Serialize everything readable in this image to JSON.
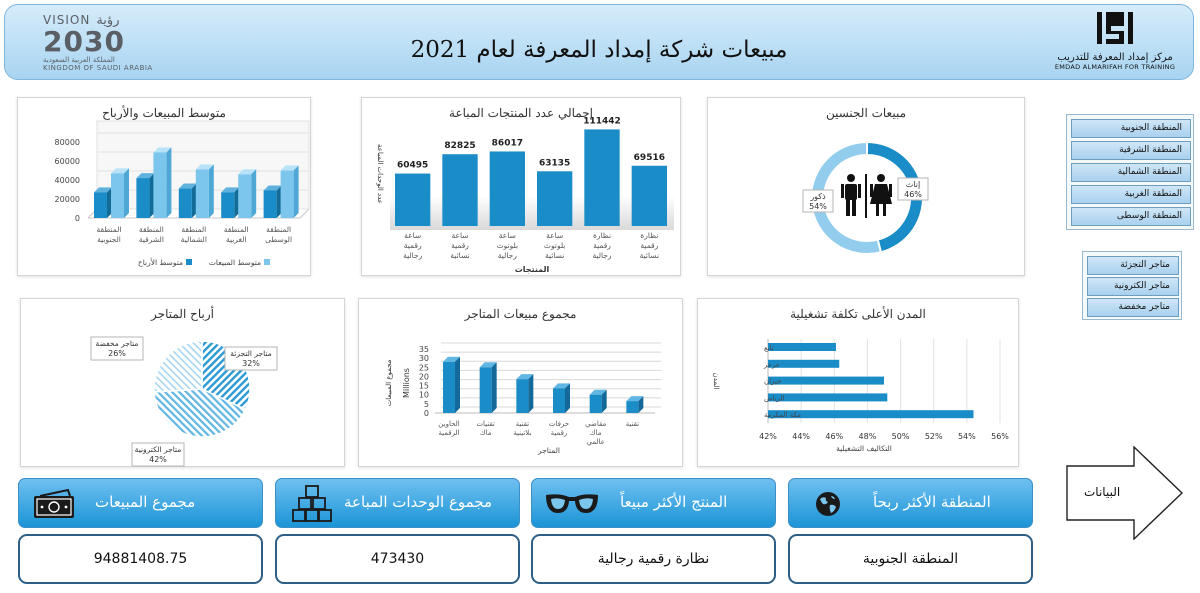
{
  "header": {
    "title": "مبيعات شركة إمداد المعرفة لعام 2021",
    "vision_top": "VISION",
    "vision_top_ar": "رؤية",
    "vision_year": "2030",
    "vision_kingdom_ar": "المملكة العربية السعودية",
    "vision_kingdom_en": "KINGDOM OF SAUDI ARABIA",
    "brand_ar": "مركز إمداد المعرفة للتدريب",
    "brand_en": "EMDAD ALMARIFAH FOR TRAINING"
  },
  "panels": {
    "avg_sales_profit": "متوسط المبيعات والأرباح",
    "total_units": "إجمالي عدد المنتجات المباعة",
    "gender_sales": "مبيعات الجنسين",
    "store_profit": "أرباح المتاجر",
    "store_sales": "مجموع مبيعات المتاجر",
    "city_costs": "المدن الأعلى تكلفة تشغيلية"
  },
  "slicers": {
    "regions": [
      "المنطقة الجنوبية",
      "المنطقة الشرقية",
      "المنطقة الشمالية",
      "المنطقة الغربية",
      "المنطقة الوسطى"
    ],
    "stores": [
      "متاجر التجزئة",
      "متاجر الكترونية",
      "متاجر مخفضة"
    ]
  },
  "nav": {
    "data_button": "البيانات"
  },
  "kpis": [
    {
      "label": "مجموع المبيعات",
      "value": "94881408.75",
      "icon": "money-icon"
    },
    {
      "label": "مجموع الوحدات المباعة",
      "value": "473430",
      "icon": "boxes-icon"
    },
    {
      "label": "المنتج الأكثر مبيعاً",
      "value": "نظارة رقمية رجالية",
      "icon": "glasses-icon"
    },
    {
      "label": "المنطقة الأكثر ربحاً",
      "value": "المنطقة الجنوبية",
      "icon": "globe-icon"
    }
  ],
  "colors": {
    "accent": "#1b94d6",
    "series_dark": "#1a8cc7",
    "series_light": "#7cc6ee",
    "header_bg": "#b6dcf4"
  },
  "chart_data": [
    {
      "id": "avg_sales_profit",
      "type": "bar",
      "title": "متوسط المبيعات والأرباح",
      "categories": [
        "المنطقة الجنوبية",
        "المنطقة الشرقية",
        "المنطقة الشمالية",
        "المنطقة الغربية",
        "المنطقة الوسطى"
      ],
      "series": [
        {
          "name": "متوسط الأرباح",
          "values": [
            27000,
            42000,
            31000,
            27000,
            29000
          ]
        },
        {
          "name": "متوسط المبيعات",
          "values": [
            47000,
            69000,
            51000,
            46000,
            50000
          ]
        }
      ],
      "yticks": [
        0,
        20000,
        40000,
        60000,
        80000
      ],
      "ylim": [
        0,
        80000
      ],
      "legend": "bottom",
      "three_d": true
    },
    {
      "id": "total_units",
      "type": "bar",
      "title": "إجمالي عدد المنتجات المباعة",
      "categories": [
        "ساعة رقمية رجالية",
        "ساعة رقمية نسائية",
        "ساعة بلوتوث رجالية",
        "ساعة بلوتوث نسائية",
        "نظارة رقمية رجالية",
        "نظارة رقمية نسائية"
      ],
      "values": [
        60495,
        82825,
        86017,
        63135,
        111442,
        69516
      ],
      "xlabel": "المنتجات",
      "ylabel": "عدد الوحدات المباعة",
      "ylim": [
        0,
        120000
      ]
    },
    {
      "id": "gender_sales",
      "type": "pie",
      "donut": true,
      "title": "مبيعات الجنسين",
      "labels": [
        "إناث",
        "ذكور"
      ],
      "values": [
        46,
        54
      ],
      "value_labels": [
        "46%",
        "54%"
      ]
    },
    {
      "id": "store_profit",
      "type": "pie",
      "title": "أرباح المتاجر",
      "labels": [
        "متاجر التجزئة",
        "متاجر الكترونية",
        "متاجر مخفضة"
      ],
      "values": [
        32,
        42,
        26
      ],
      "value_labels": [
        "32%",
        "42%",
        "26%"
      ]
    },
    {
      "id": "store_sales",
      "type": "bar",
      "title": "مجموع مبيعات المتاجر",
      "categories": [
        "الحاوين الرقمية",
        "تقنيات ماك",
        "تقنية بلاتينية",
        "حرفات رقمية",
        "مقاضي ماك عالمي",
        "تقنية"
      ],
      "values": [
        28,
        25,
        18.5,
        13.5,
        10,
        6.5
      ],
      "yticks": [
        0,
        5,
        10,
        15,
        20,
        25,
        30,
        35
      ],
      "ylim": [
        0,
        35
      ],
      "yunit": "Millions",
      "ylabel": "مجموع المبيعات",
      "xlabel": "المتاجر",
      "three_d": true
    },
    {
      "id": "city_costs",
      "type": "bar",
      "orientation": "horizontal",
      "title": "المدن الأعلى تكلفة تشغيلية",
      "categories": [
        "مكة المكرمة",
        "الرياض",
        "جيزان",
        "عرعر",
        "تابع"
      ],
      "values": [
        54.4,
        49.2,
        49.0,
        46.3,
        46.1
      ],
      "xticks": [
        "42%",
        "44%",
        "46%",
        "48%",
        "50%",
        "52%",
        "54%",
        "56%"
      ],
      "xlim": [
        42,
        56
      ],
      "xlabel": "التكاليف التشغيلية",
      "ylabel": "المدن"
    }
  ]
}
